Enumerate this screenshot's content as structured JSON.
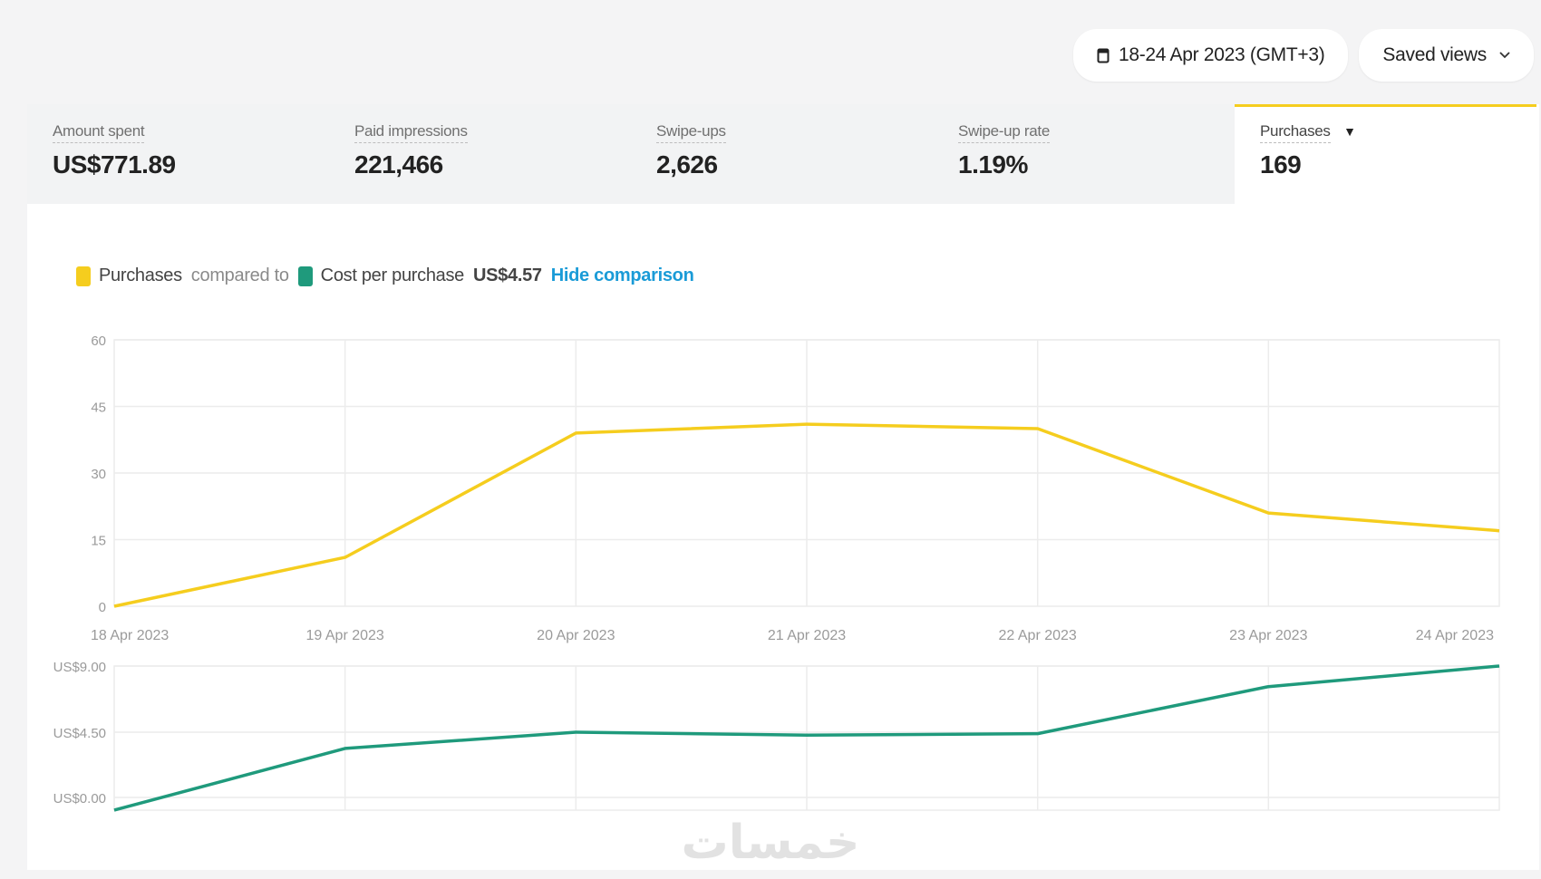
{
  "header": {
    "date_range": "18-24 Apr 2023 (GMT+3)",
    "saved_views": "Saved views"
  },
  "metrics": [
    {
      "label": "Amount spent",
      "value": "US$771.89"
    },
    {
      "label": "Paid impressions",
      "value": "221,466"
    },
    {
      "label": "Swipe-ups",
      "value": "2,626"
    },
    {
      "label": "Swipe-up rate",
      "value": "1.19%"
    },
    {
      "label": "Purchases",
      "value": "169"
    }
  ],
  "legend": {
    "primary": "Purchases",
    "compared_to": "compared to",
    "secondary": "Cost per purchase",
    "secondary_value": "US$4.57",
    "hide": "Hide comparison"
  },
  "colors": {
    "purchases": "#f5cd1e",
    "cost": "#1f9a7c",
    "link": "#1a9bd7"
  },
  "watermark": "خمسات",
  "chart_data": [
    {
      "type": "line",
      "x": [
        "18 Apr 2023",
        "19 Apr 2023",
        "20 Apr 2023",
        "21 Apr 2023",
        "22 Apr 2023",
        "23 Apr 2023",
        "24 Apr 2023"
      ],
      "series": [
        {
          "name": "Purchases",
          "values": [
            0,
            11,
            39,
            41,
            40,
            21,
            17
          ]
        }
      ],
      "yticks": [
        "0",
        "15",
        "30",
        "45",
        "60"
      ],
      "ylim": [
        0,
        60
      ],
      "grid": true
    },
    {
      "type": "line",
      "x": [
        "18 Apr 2023",
        "19 Apr 2023",
        "20 Apr 2023",
        "21 Apr 2023",
        "22 Apr 2023",
        "23 Apr 2023",
        "24 Apr 2023"
      ],
      "series": [
        {
          "name": "Cost per purchase",
          "values": [
            -0.8,
            3.4,
            4.5,
            4.3,
            4.4,
            7.6,
            9.0
          ]
        }
      ],
      "yticks": [
        "US$0.00",
        "US$4.50",
        "US$9.00"
      ],
      "ylim": [
        -0.8,
        9.0
      ],
      "grid": true
    }
  ]
}
